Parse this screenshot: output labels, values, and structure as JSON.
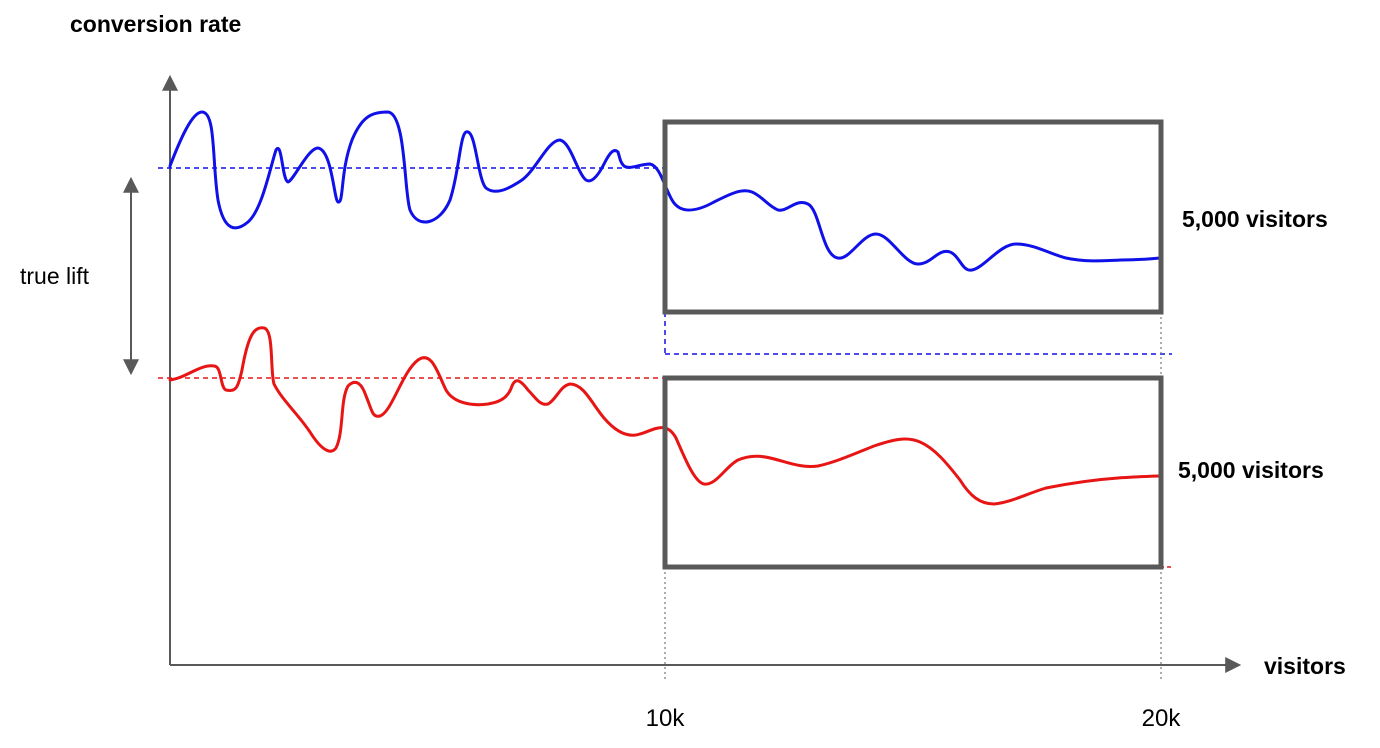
{
  "labels": {
    "y_axis": "conversion rate",
    "x_axis": "visitors",
    "lift": "true lift",
    "top_box": "5,000 visitors",
    "bottom_box": "5,000 visitors",
    "tick_10k": "10k",
    "tick_20k": "20k"
  },
  "colors": {
    "series_a": "#1010e8",
    "series_b": "#e81515",
    "box": "#595959",
    "axis": "#595959"
  }
}
